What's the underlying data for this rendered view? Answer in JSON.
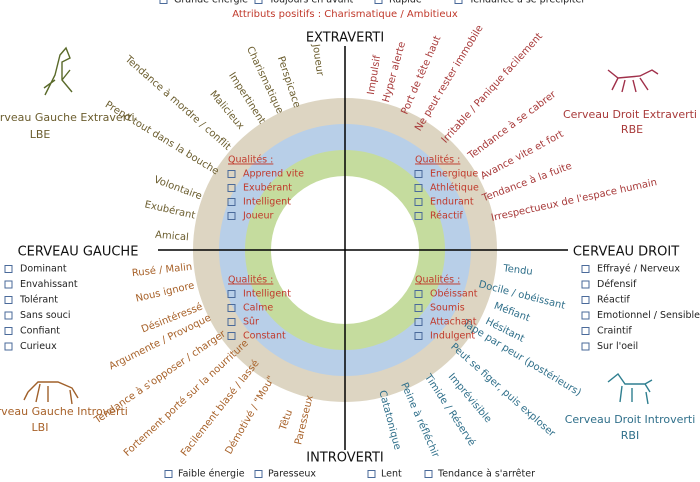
{
  "header": {
    "top_items": [
      "Grande énergie",
      "Toujours en avant",
      "Rapide",
      "Tendance à se précipiter"
    ],
    "positive": "Attributs positifs : Charismatique / Ambitieux"
  },
  "axes": {
    "top": "EXTRAVERTI",
    "bottom": "INTROVERTI",
    "left": "CERVEAU GAUCHE",
    "right": "CERVEAU DROIT"
  },
  "quadrants": [
    {
      "title": "Cerveau Gauche Extraverti",
      "code": "LBE",
      "traits": [
        "Tendance à mordre / conflit",
        "Prend tout dans la bouche",
        "Malicieux",
        "Impertinent",
        "Charismatique",
        "Perspicace",
        "Joueur",
        "Volontaire",
        "Exubérant",
        "Amical"
      ],
      "qualities_label": "Qualités :",
      "qualities": [
        "Apprend vite",
        "Exubérant",
        "Intelligent",
        "Joueur"
      ]
    },
    {
      "title": "Cerveau Droit Extraverti",
      "code": "RBE",
      "traits": [
        "Impulsif",
        "Hyper alerte",
        "Port de tête haut",
        "Ne peut rester immobile",
        "Irritable / Panique facilement",
        "Tendance à se cabrer",
        "Avance vite et fort",
        "Tendance à la fuite",
        "Irrespectueux de l'espace humain"
      ],
      "qualities_label": "Qualités :",
      "qualities": [
        "Energique",
        "Athlétique",
        "Endurant",
        "Réactif"
      ]
    },
    {
      "title": "Cerveau Gauche Introverti",
      "code": "LBI",
      "traits": [
        "Rusé / Malin",
        "Nous ignore",
        "Désintéressé",
        "Argumente / Provoque",
        "Tendance à s'opposer / charger",
        "Fortement porté sur la nourriture",
        "Facilement blasé / lassé",
        "Démotivé / \"Mou\"",
        "Têtu",
        "Paresseux"
      ],
      "qualities_label": "Qualités :",
      "qualities": [
        "Intelligent",
        "Calme",
        "Sûr",
        "Constant"
      ]
    },
    {
      "title": "Cerveau Droit Introverti",
      "code": "RBI",
      "traits": [
        "Tendu",
        "Docile / obéissant",
        "Méfiant",
        "Hésitant",
        "Tape par peur (postérieurs)",
        "Peut se figer, puis exploser",
        "Imprévisible",
        "Timide / Réservé",
        "Peine à réfléchir",
        "Catatonique"
      ],
      "qualities_label": "Qualités :",
      "qualities": [
        "Obéissant",
        "Soumis",
        "Attachant",
        "Indulgent"
      ]
    }
  ],
  "left_list": [
    "Dominant",
    "Envahissant",
    "Tolérant",
    "Sans souci",
    "Confiant",
    "Curieux"
  ],
  "right_list": [
    "Effrayé / Nerveux",
    "Défensif",
    "Réactif",
    "Emotionnel  / Sensible",
    "Craintif",
    "Sur l'oeil"
  ],
  "footer": {
    "bottom_items": [
      "Faible énergie",
      "Paresseux",
      "Lent",
      "Tendance à s'arrêter"
    ]
  }
}
